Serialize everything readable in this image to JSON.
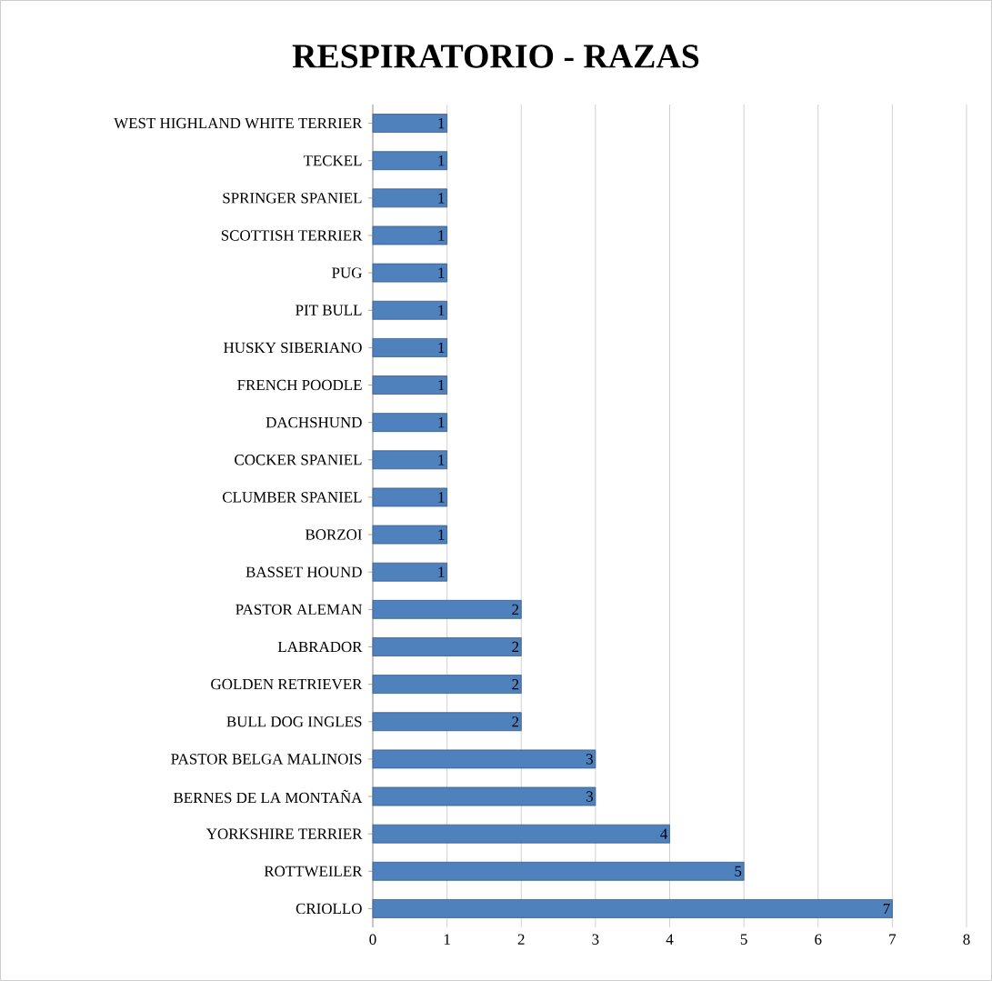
{
  "chart_data": {
    "type": "bar",
    "orientation": "horizontal",
    "title": "RESPIRATORIO - RAZAS",
    "categories": [
      "WEST HIGHLAND WHITE TERRIER",
      "TECKEL",
      "SPRINGER SPANIEL",
      "SCOTTISH TERRIER",
      "PUG",
      "PIT BULL",
      "HUSKY SIBERIANO",
      "FRENCH POODLE",
      "DACHSHUND",
      "COCKER SPANIEL",
      "CLUMBER SPANIEL",
      "BORZOI",
      "BASSET HOUND",
      "PASTOR ALEMAN",
      "LABRADOR",
      "GOLDEN RETRIEVER",
      "BULL DOG INGLES",
      "PASTOR BELGA MALINOIS",
      "BERNES DE LA MONTAÑA",
      "YORKSHIRE TERRIER",
      "ROTTWEILER",
      "CRIOLLO"
    ],
    "values": [
      1,
      1,
      1,
      1,
      1,
      1,
      1,
      1,
      1,
      1,
      1,
      1,
      1,
      2,
      2,
      2,
      2,
      3,
      3,
      4,
      5,
      7
    ],
    "color": "#4f81bd",
    "xlim": [
      0,
      8
    ],
    "xticks": [
      0,
      1,
      2,
      3,
      4,
      5,
      6,
      7,
      8
    ],
    "grid": "x",
    "data_labels": true
  }
}
